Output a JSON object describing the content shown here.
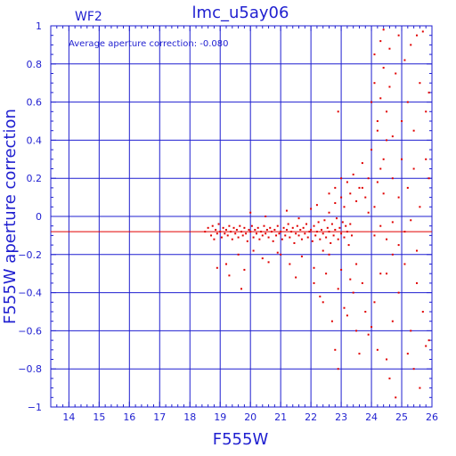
{
  "chart_data": {
    "type": "scatter",
    "title": "lmc_u5ay06",
    "panel_label": "WF2",
    "xlabel": "F555W",
    "ylabel": "F555W aperture correction",
    "annotation": "Average aperture correction:  -0.080",
    "xlim": [
      13.4,
      26
    ],
    "ylim": [
      -1,
      1
    ],
    "x_ticks": [
      14,
      15,
      16,
      17,
      18,
      19,
      20,
      21,
      22,
      23,
      24,
      25,
      26
    ],
    "y_ticks": [
      -1,
      -0.8,
      -0.6,
      -0.4,
      -0.2,
      0,
      0.2,
      0.4,
      0.6,
      0.8,
      1
    ],
    "y_tick_labels": [
      "−1",
      "−0.8",
      "−0.6",
      "−0.4",
      "−0.2",
      "0",
      "0.2",
      "0.4",
      "0.6",
      "0.8",
      "1"
    ],
    "grid": true,
    "reference_line": {
      "y": -0.08
    },
    "colors": {
      "axes": "#1f1fd0",
      "points": "#e00000",
      "reference_line": "#e00000"
    },
    "points": [
      [
        18.5,
        -0.08
      ],
      [
        18.6,
        -0.06
      ],
      [
        18.7,
        -0.1
      ],
      [
        18.75,
        -0.05
      ],
      [
        18.8,
        -0.12
      ],
      [
        18.85,
        -0.07
      ],
      [
        18.9,
        -0.09
      ],
      [
        18.95,
        -0.04
      ],
      [
        19.0,
        -0.08
      ],
      [
        19.05,
        -0.11
      ],
      [
        19.1,
        -0.06
      ],
      [
        19.15,
        -0.09
      ],
      [
        19.2,
        -0.07
      ],
      [
        19.25,
        -0.1
      ],
      [
        19.3,
        -0.05
      ],
      [
        19.35,
        -0.08
      ],
      [
        19.4,
        -0.12
      ],
      [
        19.45,
        -0.06
      ],
      [
        19.5,
        -0.09
      ],
      [
        19.55,
        -0.07
      ],
      [
        19.6,
        -0.11
      ],
      [
        19.65,
        -0.05
      ],
      [
        19.7,
        -0.08
      ],
      [
        19.75,
        -0.1
      ],
      [
        19.8,
        -0.06
      ],
      [
        19.85,
        -0.09
      ],
      [
        19.9,
        -0.13
      ],
      [
        19.95,
        -0.07
      ],
      [
        20.0,
        -0.08
      ],
      [
        20.05,
        -0.05
      ],
      [
        20.1,
        -0.11
      ],
      [
        20.15,
        -0.07
      ],
      [
        20.2,
        -0.09
      ],
      [
        20.25,
        -0.06
      ],
      [
        20.3,
        -0.12
      ],
      [
        20.35,
        -0.08
      ],
      [
        20.4,
        -0.1
      ],
      [
        20.45,
        -0.05
      ],
      [
        20.5,
        -0.09
      ],
      [
        20.55,
        -0.07
      ],
      [
        20.6,
        -0.11
      ],
      [
        20.65,
        -0.06
      ],
      [
        20.7,
        -0.08
      ],
      [
        20.75,
        -0.13
      ],
      [
        20.8,
        -0.07
      ],
      [
        20.85,
        -0.1
      ],
      [
        20.9,
        -0.05
      ],
      [
        20.95,
        -0.09
      ],
      [
        21.0,
        -0.08
      ],
      [
        21.05,
        -0.12
      ],
      [
        21.1,
        -0.06
      ],
      [
        21.15,
        -0.1
      ],
      [
        21.2,
        -0.07
      ],
      [
        21.25,
        -0.04
      ],
      [
        21.3,
        -0.11
      ],
      [
        21.35,
        -0.08
      ],
      [
        21.4,
        -0.06
      ],
      [
        21.45,
        -0.14
      ],
      [
        21.5,
        -0.09
      ],
      [
        21.55,
        -0.05
      ],
      [
        21.6,
        -0.1
      ],
      [
        21.65,
        -0.07
      ],
      [
        21.7,
        -0.12
      ],
      [
        21.75,
        -0.06
      ],
      [
        21.8,
        -0.09
      ],
      [
        21.85,
        -0.04
      ],
      [
        21.9,
        -0.11
      ],
      [
        21.95,
        -0.08
      ],
      [
        22.0,
        -0.07
      ],
      [
        22.05,
        -0.13
      ],
      [
        22.1,
        -0.05
      ],
      [
        22.15,
        -0.1
      ],
      [
        22.2,
        -0.08
      ],
      [
        22.25,
        -0.03
      ],
      [
        22.3,
        -0.12
      ],
      [
        22.35,
        -0.07
      ],
      [
        22.4,
        -0.09
      ],
      [
        22.45,
        -0.02
      ],
      [
        22.5,
        -0.11
      ],
      [
        22.55,
        -0.06
      ],
      [
        22.6,
        -0.08
      ],
      [
        22.65,
        -0.14
      ],
      [
        22.7,
        -0.04
      ],
      [
        22.75,
        -0.1
      ],
      [
        22.8,
        -0.07
      ],
      [
        22.85,
        -0.01
      ],
      [
        22.9,
        -0.12
      ],
      [
        22.95,
        -0.06
      ],
      [
        23.0,
        -0.09
      ],
      [
        23.05,
        -0.03
      ],
      [
        23.1,
        -0.11
      ],
      [
        23.15,
        -0.05
      ],
      [
        23.2,
        -0.08
      ],
      [
        23.25,
        -0.15
      ],
      [
        23.3,
        -0.04
      ],
      [
        23.35,
        -0.1
      ],
      [
        19.2,
        -0.25
      ],
      [
        19.6,
        -0.2
      ],
      [
        19.8,
        -0.28
      ],
      [
        20.4,
        -0.22
      ],
      [
        20.9,
        -0.19
      ],
      [
        21.3,
        -0.25
      ],
      [
        21.7,
        -0.21
      ],
      [
        22.1,
        -0.27
      ],
      [
        18.9,
        -0.27
      ],
      [
        19.3,
        -0.31
      ],
      [
        19.7,
        -0.38
      ],
      [
        20.1,
        -0.18
      ],
      [
        20.6,
        -0.24
      ],
      [
        21.0,
        -0.2
      ],
      [
        21.5,
        -0.32
      ],
      [
        22.4,
        -0.18
      ],
      [
        20.0,
        0.02
      ],
      [
        20.5,
        0.0
      ],
      [
        21.2,
        0.03
      ],
      [
        21.6,
        -0.01
      ],
      [
        22.0,
        0.04
      ],
      [
        22.2,
        0.06
      ],
      [
        22.6,
        0.02
      ],
      [
        22.8,
        0.07
      ],
      [
        22.1,
        -0.35
      ],
      [
        22.3,
        -0.42
      ],
      [
        22.5,
        -0.3
      ],
      [
        22.7,
        -0.55
      ],
      [
        22.9,
        -0.38
      ],
      [
        23.1,
        -0.48
      ],
      [
        23.3,
        -0.33
      ],
      [
        23.5,
        -0.6
      ],
      [
        22.4,
        -0.45
      ],
      [
        22.6,
        -0.2
      ],
      [
        22.8,
        -0.7
      ],
      [
        23.0,
        -0.28
      ],
      [
        23.2,
        -0.52
      ],
      [
        23.4,
        -0.4
      ],
      [
        23.6,
        -0.72
      ],
      [
        23.8,
        -0.5
      ],
      [
        22.9,
        -0.8
      ],
      [
        23.5,
        -0.25
      ],
      [
        23.7,
        -0.35
      ],
      [
        23.9,
        -0.62
      ],
      [
        24.1,
        -0.45
      ],
      [
        24.3,
        -0.3
      ],
      [
        24.5,
        -0.75
      ],
      [
        24.7,
        -0.55
      ],
      [
        23.0,
        0.1
      ],
      [
        23.1,
        0.05
      ],
      [
        23.2,
        0.18
      ],
      [
        23.3,
        0.12
      ],
      [
        23.4,
        0.22
      ],
      [
        23.5,
        0.08
      ],
      [
        23.6,
        0.15
      ],
      [
        23.7,
        0.28
      ],
      [
        23.8,
        0.1
      ],
      [
        23.9,
        0.2
      ],
      [
        24.0,
        0.35
      ],
      [
        24.1,
        0.05
      ],
      [
        24.2,
        0.18
      ],
      [
        24.3,
        0.25
      ],
      [
        24.4,
        0.12
      ],
      [
        24.5,
        0.4
      ],
      [
        22.8,
        0.15
      ],
      [
        23.0,
        0.2
      ],
      [
        22.6,
        0.12
      ],
      [
        22.9,
        0.55
      ],
      [
        23.7,
        0.15
      ],
      [
        23.9,
        0.02
      ],
      [
        24.2,
        0.45
      ],
      [
        24.4,
        0.3
      ],
      [
        24.0,
        0.6
      ],
      [
        24.1,
        0.7
      ],
      [
        24.2,
        0.5
      ],
      [
        24.3,
        0.62
      ],
      [
        24.4,
        0.78
      ],
      [
        24.5,
        0.55
      ],
      [
        24.6,
        0.68
      ],
      [
        24.7,
        0.42
      ],
      [
        24.1,
        0.85
      ],
      [
        24.3,
        0.92
      ],
      [
        24.4,
        0.98
      ],
      [
        24.6,
        0.88
      ],
      [
        24.8,
        0.75
      ],
      [
        24.9,
        0.95
      ],
      [
        25.1,
        0.82
      ],
      [
        25.3,
        0.9
      ],
      [
        24.7,
        0.2
      ],
      [
        24.9,
        0.1
      ],
      [
        25.0,
        0.3
      ],
      [
        25.2,
        0.15
      ],
      [
        25.4,
        0.25
      ],
      [
        25.6,
        0.05
      ],
      [
        25.8,
        0.3
      ],
      [
        25.9,
        0.2
      ],
      [
        24.5,
        -0.3
      ],
      [
        24.7,
        -0.2
      ],
      [
        24.9,
        -0.4
      ],
      [
        25.1,
        -0.25
      ],
      [
        25.3,
        -0.6
      ],
      [
        25.5,
        -0.35
      ],
      [
        25.7,
        -0.5
      ],
      [
        25.9,
        -0.65
      ],
      [
        24.6,
        -0.85
      ],
      [
        24.8,
        -0.95
      ],
      [
        25.2,
        -0.72
      ],
      [
        25.4,
        -0.8
      ],
      [
        25.6,
        -0.9
      ],
      [
        25.8,
        -0.68
      ],
      [
        24.0,
        -0.58
      ],
      [
        24.2,
        -0.7
      ],
      [
        25.0,
        0.5
      ],
      [
        25.2,
        0.6
      ],
      [
        25.4,
        0.45
      ],
      [
        25.6,
        0.7
      ],
      [
        25.8,
        0.55
      ],
      [
        25.9,
        0.65
      ],
      [
        25.5,
        0.95
      ],
      [
        25.7,
        0.97
      ],
      [
        24.1,
        -0.1
      ],
      [
        24.3,
        -0.05
      ],
      [
        24.5,
        -0.12
      ],
      [
        24.7,
        -0.03
      ],
      [
        24.9,
        -0.15
      ],
      [
        25.1,
        -0.08
      ],
      [
        25.3,
        -0.02
      ],
      [
        25.5,
        -0.18
      ]
    ]
  }
}
